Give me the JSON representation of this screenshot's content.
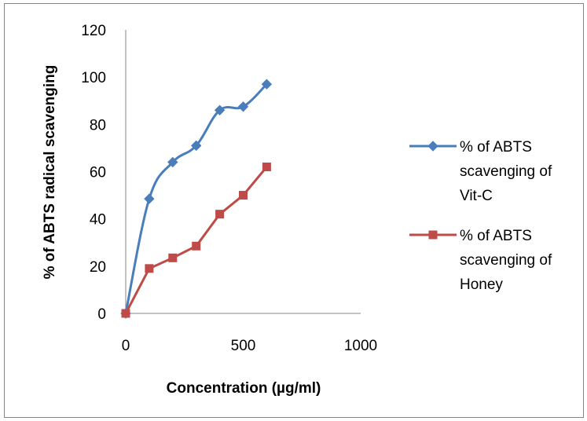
{
  "chart_data": {
    "type": "line",
    "title": "",
    "xlabel": "Concentration (µg/ml)",
    "ylabel": "% of ABTS radical scavenging",
    "xlim": [
      0,
      1000
    ],
    "ylim": [
      0,
      120
    ],
    "xticks": [
      "0",
      "500",
      "1000"
    ],
    "yticks": [
      "0",
      "20",
      "40",
      "60",
      "80",
      "100",
      "120"
    ],
    "grid": false,
    "legend_position": "right",
    "series": [
      {
        "name": "% of ABTS scavenging of Vit-C",
        "legend_lines": [
          "% of ABTS",
          "scavenging of",
          "Vit-C"
        ],
        "color": "#4a7ebb",
        "marker": "diamond",
        "smooth": true,
        "x": [
          0,
          100,
          200,
          300,
          400,
          500,
          600
        ],
        "y": [
          0,
          48.5,
          64,
          71,
          86,
          87.5,
          97
        ]
      },
      {
        "name": "% of ABTS scavenging of Honey",
        "legend_lines": [
          "% of ABTS",
          "scavenging of",
          "Honey"
        ],
        "color": "#be4b48",
        "marker": "square",
        "smooth": false,
        "x": [
          0,
          100,
          200,
          300,
          400,
          500,
          600
        ],
        "y": [
          0,
          19,
          23.5,
          28.5,
          42,
          50,
          62
        ]
      }
    ]
  }
}
